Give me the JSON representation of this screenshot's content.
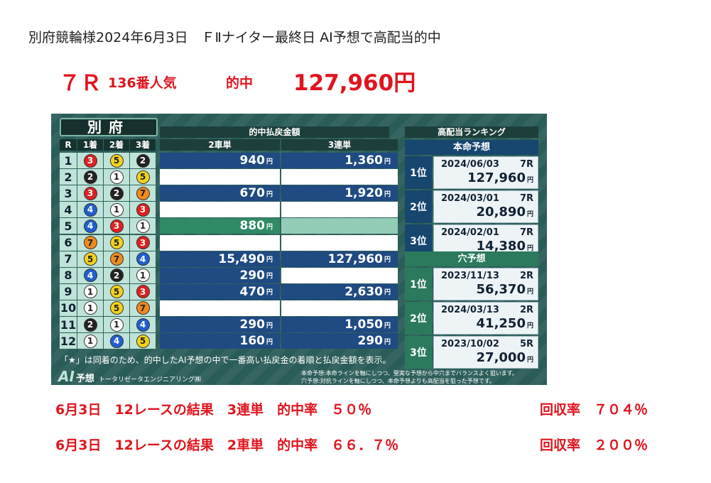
{
  "headline": "別府競輪様2024年6月3日　ＦⅡナイター最終日 AI予想で高配当的中",
  "highlight": {
    "race": "７Ｒ",
    "popularity": "136番人気",
    "hit": "的中",
    "amount": "127,960円"
  },
  "board": {
    "venue": "別府",
    "headers": {
      "r": "R",
      "p1": "1着",
      "p2": "2着",
      "p3": "3着",
      "payout_group": "的中払戻金額",
      "exacta": "2車単",
      "trifecta": "3連単",
      "ranking": "高配当ランキング"
    },
    "yen": "円",
    "races": [
      {
        "r": "1",
        "pl": [
          "3",
          "5",
          "2"
        ],
        "c2": "940",
        "c3": "1,360",
        "s2": "blue",
        "s3": "blue"
      },
      {
        "r": "2",
        "pl": [
          "2",
          "1",
          "5"
        ],
        "c2": "",
        "c3": "",
        "s2": "empty",
        "s3": "empty"
      },
      {
        "r": "3",
        "pl": [
          "3",
          "2",
          "7"
        ],
        "c2": "670",
        "c3": "1,920",
        "s2": "blue",
        "s3": "blue"
      },
      {
        "r": "4",
        "pl": [
          "4",
          "1",
          "3"
        ],
        "c2": "",
        "c3": "",
        "s2": "empty",
        "s3": "empty"
      },
      {
        "r": "5",
        "pl": [
          "4",
          "3",
          "1"
        ],
        "c2": "880",
        "c3": "",
        "s2": "green",
        "s3": "lightgreen"
      },
      {
        "r": "6",
        "pl": [
          "7",
          "5",
          "3"
        ],
        "c2": "",
        "c3": "",
        "s2": "empty",
        "s3": "empty"
      },
      {
        "r": "7",
        "pl": [
          "5",
          "7",
          "4"
        ],
        "c2": "15,490",
        "c3": "127,960",
        "s2": "blue",
        "s3": "blue"
      },
      {
        "r": "8",
        "pl": [
          "4",
          "2",
          "1"
        ],
        "c2": "290",
        "c3": "",
        "s2": "blue",
        "s3": "empty"
      },
      {
        "r": "9",
        "pl": [
          "1",
          "5",
          "3"
        ],
        "c2": "470",
        "c3": "2,630",
        "s2": "blue",
        "s3": "blue"
      },
      {
        "r": "10",
        "pl": [
          "1",
          "5",
          "7"
        ],
        "c2": "",
        "c3": "",
        "s2": "empty",
        "s3": "empty"
      },
      {
        "r": "11",
        "pl": [
          "2",
          "1",
          "4"
        ],
        "c2": "290",
        "c3": "1,050",
        "s2": "blue",
        "s3": "blue"
      },
      {
        "r": "12",
        "pl": [
          "1",
          "4",
          "5"
        ],
        "c2": "160",
        "c3": "290",
        "s2": "blue",
        "s3": "blue"
      }
    ],
    "ranking": {
      "honmei_label": "本命予想",
      "honmei": [
        {
          "pos": "1位",
          "date": "2024/06/03",
          "race": "7R",
          "value": "127,960"
        },
        {
          "pos": "2位",
          "date": "2024/03/01",
          "race": "7R",
          "value": "20,890"
        },
        {
          "pos": "3位",
          "date": "2024/02/01",
          "race": "7R",
          "value": "14,380"
        }
      ],
      "ana_label": "穴予想",
      "ana": [
        {
          "pos": "1位",
          "date": "2023/11/13",
          "race": "2R",
          "value": "56,370"
        },
        {
          "pos": "2位",
          "date": "2024/03/13",
          "race": "2R",
          "value": "41,250"
        },
        {
          "pos": "3位",
          "date": "2023/10/02",
          "race": "5R",
          "value": "27,000"
        }
      ]
    },
    "note": "「★」は同着のため、的中したAI予想の中で一番高い払戻金の着順と払戻金額を表示。",
    "logo": {
      "ai": "AI",
      "yoso": "予想",
      "company": "トータリゼータエンジニアリング㈱"
    },
    "legend": {
      "line1": "本命予想:本命ラインを軸にしつつ、堅実な予想から中穴までバランスよく狙います。",
      "line2": "穴予想:対抗ラインを軸にしつつ、本命予想よりも高配当を狙った予想です。"
    }
  },
  "results": [
    {
      "label": "6月3日　12レースの結果　3連単　的中率　５０％",
      "recovery": "回収率　７０４％"
    },
    {
      "label": "6月3日　12レースの結果　2車単　的中率　６６．７％",
      "recovery": "回収率　２００％"
    }
  ],
  "bike_colors": {
    "1": {
      "bg": "#ffffff",
      "fg": "#222222"
    },
    "2": {
      "bg": "#222222",
      "fg": "#ffffff"
    },
    "3": {
      "bg": "#e02020",
      "fg": "#ffffff"
    },
    "4": {
      "bg": "#1f5fd0",
      "fg": "#ffffff"
    },
    "5": {
      "bg": "#f2d21a",
      "fg": "#222222"
    },
    "7": {
      "bg": "#f08a1c",
      "fg": "#222222"
    }
  }
}
